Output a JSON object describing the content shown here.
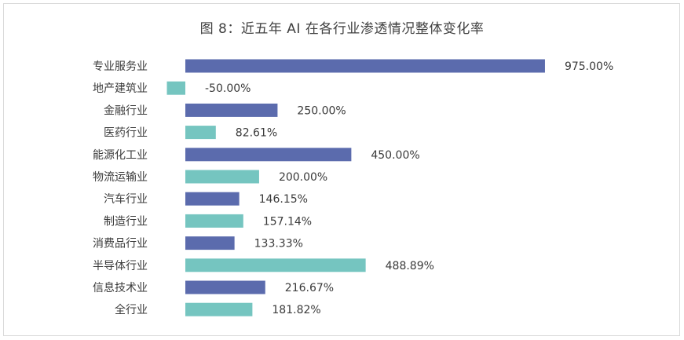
{
  "title": "图 8：近五年 AI 在各行业渗透情况整体变化率",
  "colors": {
    "primary": "#5b6bad",
    "secondary": "#75c5c0",
    "text": "#3a3a3a",
    "border": "#d9d9d9"
  },
  "chart_data": {
    "type": "bar",
    "orientation": "horizontal",
    "title": "图 8：近五年 AI 在各行业渗透情况整体变化率",
    "categories": [
      "专业服务业",
      "地产建筑业",
      "金融行业",
      "医药行业",
      "能源化工业",
      "物流运输业",
      "汽车行业",
      "制造行业",
      "消费品行业",
      "半导体行业",
      "信息技术业",
      "全行业"
    ],
    "values": [
      975.0,
      -50.0,
      250.0,
      82.61,
      450.0,
      200.0,
      146.15,
      157.14,
      133.33,
      488.89,
      216.67,
      181.82
    ],
    "labels": [
      "975.00%",
      "-50.00%",
      "250.00%",
      "82.61%",
      "450.00%",
      "200.00%",
      "146.15%",
      "157.14%",
      "133.33%",
      "488.89%",
      "216.67%",
      "181.82%"
    ],
    "bar_colors": [
      "#5b6bad",
      "#75c5c0",
      "#5b6bad",
      "#75c5c0",
      "#5b6bad",
      "#75c5c0",
      "#5b6bad",
      "#75c5c0",
      "#5b6bad",
      "#75c5c0",
      "#5b6bad",
      "#75c5c0"
    ],
    "xlim": [
      -50,
      975
    ],
    "xlabel": "",
    "ylabel": "",
    "grid": false,
    "legend": false
  }
}
